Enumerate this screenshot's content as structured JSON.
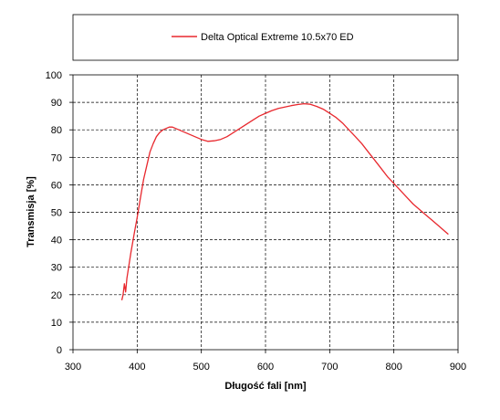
{
  "chart_data": {
    "type": "line",
    "xlabel": "Długość fali [nm]",
    "ylabel": "Transmisja [%]",
    "xlim": [
      300,
      900
    ],
    "ylim": [
      0,
      100
    ],
    "x_ticks": [
      300,
      400,
      500,
      600,
      700,
      800,
      900
    ],
    "y_ticks": [
      0,
      10,
      20,
      30,
      40,
      50,
      60,
      70,
      80,
      90,
      100
    ],
    "grid": true,
    "legend": "top",
    "series": [
      {
        "name": "Delta Optical Extreme 10.5x70 ED",
        "color": "#e8282e",
        "points": [
          [
            376,
            18
          ],
          [
            378,
            20
          ],
          [
            380,
            24
          ],
          [
            382,
            21
          ],
          [
            384,
            26
          ],
          [
            386,
            29
          ],
          [
            388,
            32
          ],
          [
            390,
            35
          ],
          [
            393,
            39
          ],
          [
            396,
            43
          ],
          [
            400,
            48
          ],
          [
            405,
            55
          ],
          [
            410,
            62
          ],
          [
            415,
            67
          ],
          [
            420,
            72
          ],
          [
            425,
            75
          ],
          [
            430,
            77.5
          ],
          [
            435,
            79
          ],
          [
            440,
            80
          ],
          [
            445,
            80.5
          ],
          [
            450,
            81
          ],
          [
            455,
            81
          ],
          [
            460,
            80.5
          ],
          [
            465,
            80
          ],
          [
            470,
            79.5
          ],
          [
            475,
            79
          ],
          [
            480,
            78.5
          ],
          [
            490,
            77.5
          ],
          [
            500,
            76.5
          ],
          [
            510,
            75.8
          ],
          [
            520,
            76
          ],
          [
            530,
            76.5
          ],
          [
            540,
            77.5
          ],
          [
            550,
            79
          ],
          [
            560,
            80.5
          ],
          [
            570,
            82
          ],
          [
            580,
            83.5
          ],
          [
            590,
            85
          ],
          [
            600,
            86
          ],
          [
            610,
            87
          ],
          [
            620,
            87.8
          ],
          [
            630,
            88.3
          ],
          [
            640,
            88.8
          ],
          [
            650,
            89.2
          ],
          [
            660,
            89.5
          ],
          [
            670,
            89.3
          ],
          [
            680,
            88.5
          ],
          [
            690,
            87.5
          ],
          [
            700,
            86
          ],
          [
            710,
            84.5
          ],
          [
            720,
            82.5
          ],
          [
            730,
            80
          ],
          [
            740,
            77.5
          ],
          [
            750,
            75
          ],
          [
            760,
            72
          ],
          [
            770,
            69
          ],
          [
            780,
            66
          ],
          [
            790,
            63
          ],
          [
            800,
            60.5
          ],
          [
            810,
            58
          ],
          [
            820,
            55.5
          ],
          [
            830,
            53
          ],
          [
            840,
            51
          ],
          [
            850,
            49
          ],
          [
            860,
            47
          ],
          [
            870,
            45
          ],
          [
            880,
            43
          ],
          [
            885,
            42
          ]
        ]
      }
    ]
  }
}
